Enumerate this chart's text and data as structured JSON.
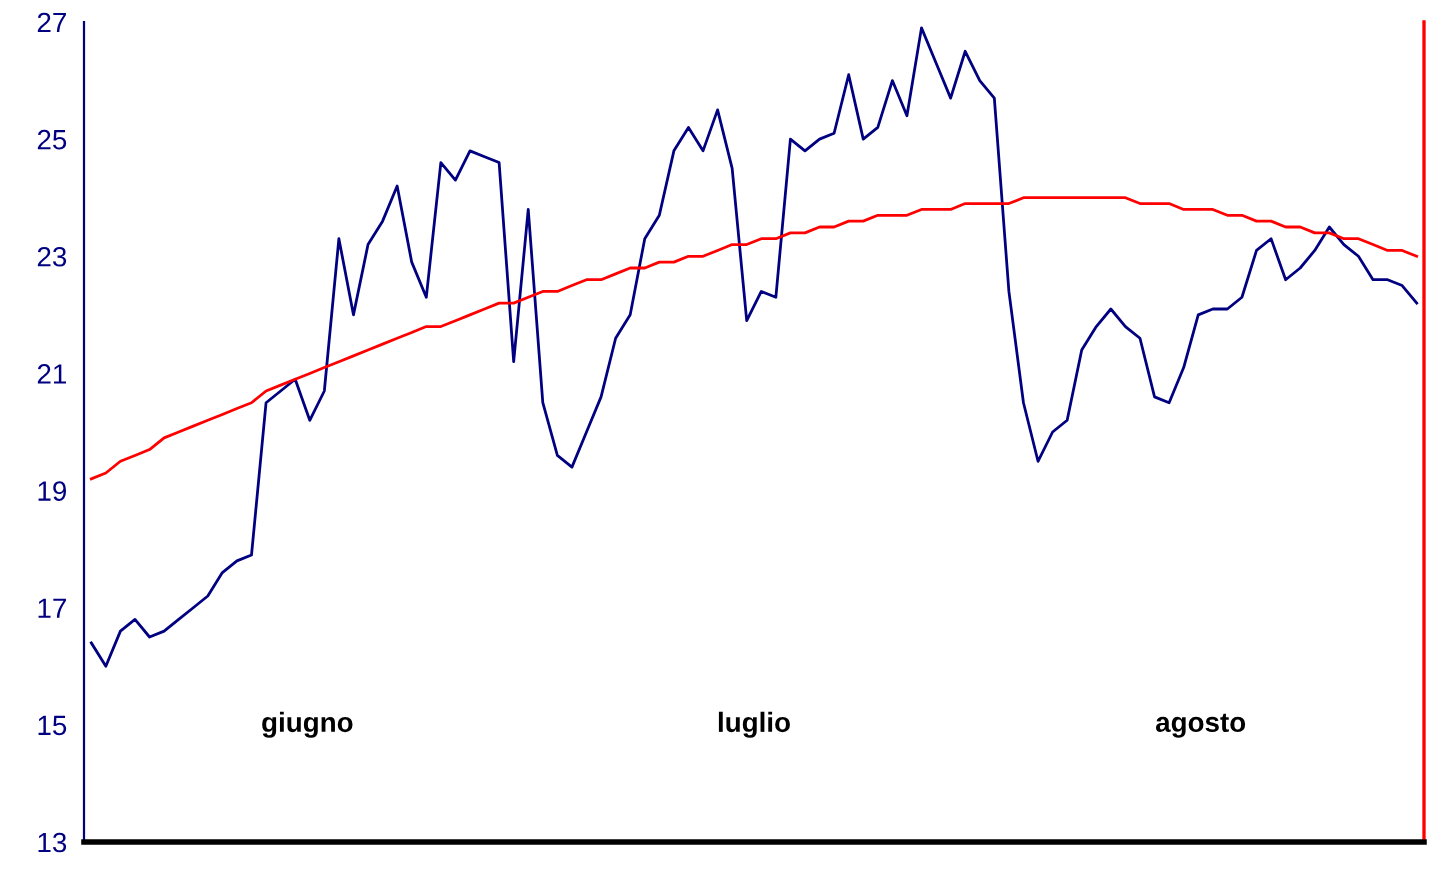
{
  "chart_data": {
    "type": "line",
    "categories": [
      null,
      null,
      null,
      null,
      null,
      null,
      null,
      null,
      null,
      null,
      null,
      null,
      null,
      null,
      null,
      null,
      null,
      null,
      null,
      null,
      null,
      null,
      null,
      null,
      null,
      null,
      null,
      null,
      null,
      null,
      null,
      null,
      null,
      null,
      null,
      null,
      null,
      null,
      null,
      null,
      null,
      null,
      null,
      null,
      null,
      null,
      null,
      null,
      null,
      null,
      null,
      null,
      null,
      null,
      null,
      null,
      null,
      null,
      null,
      null,
      null,
      null,
      null,
      null,
      null,
      null,
      null,
      null,
      null,
      null,
      null,
      null,
      null,
      null,
      null,
      null,
      null,
      null,
      null,
      null,
      null,
      null,
      null,
      null,
      null,
      null,
      null,
      null,
      null,
      null,
      null,
      null
    ],
    "ylim": [
      13,
      27
    ],
    "yticks": [
      13,
      15,
      17,
      19,
      21,
      23,
      25,
      27
    ],
    "tick_labels": "y",
    "grid": false,
    "marker": "none",
    "line_style": "solid",
    "annotations": [
      "giugno",
      "luglio",
      "agosto"
    ],
    "series": [
      {
        "color": "#000080",
        "values": [
          16.4,
          16.0,
          16.6,
          16.8,
          16.5,
          16.6,
          16.8,
          17.0,
          17.2,
          17.6,
          17.8,
          17.9,
          20.5,
          20.7,
          20.9,
          20.2,
          20.7,
          23.3,
          22.0,
          23.2,
          23.6,
          24.2,
          22.9,
          22.3,
          24.6,
          24.3,
          24.8,
          24.7,
          24.6,
          21.2,
          23.8,
          20.5,
          19.6,
          19.4,
          20.0,
          20.6,
          21.6,
          22.0,
          23.3,
          23.7,
          24.8,
          25.2,
          24.8,
          25.5,
          24.5,
          21.9,
          22.4,
          22.3,
          25.0,
          24.8,
          25.0,
          25.1,
          26.1,
          25.0,
          25.2,
          26.0,
          25.4,
          26.9,
          26.3,
          25.7,
          26.5,
          26.0,
          25.7,
          22.4,
          20.5,
          19.5,
          20.0,
          20.2,
          21.4,
          21.8,
          22.1,
          21.8,
          21.6,
          20.6,
          20.5,
          21.1,
          22.0,
          22.1,
          22.1,
          22.3,
          23.1,
          23.3,
          22.6,
          22.8,
          23.1,
          23.5,
          23.2,
          23.0,
          22.6,
          22.6,
          22.5,
          22.2
        ]
      },
      {
        "color": "#ff0000",
        "values": [
          19.2,
          19.3,
          19.5,
          19.6,
          19.7,
          19.9,
          20.0,
          20.1,
          20.2,
          20.3,
          20.4,
          20.5,
          20.7,
          20.8,
          20.9,
          21.0,
          21.1,
          21.2,
          21.3,
          21.4,
          21.5,
          21.6,
          21.7,
          21.8,
          21.8,
          21.9,
          22.0,
          22.1,
          22.2,
          22.2,
          22.3,
          22.4,
          22.4,
          22.5,
          22.6,
          22.6,
          22.7,
          22.8,
          22.8,
          22.9,
          22.9,
          23.0,
          23.0,
          23.1,
          23.2,
          23.2,
          23.3,
          23.3,
          23.4,
          23.4,
          23.5,
          23.5,
          23.6,
          23.6,
          23.7,
          23.7,
          23.7,
          23.8,
          23.8,
          23.8,
          23.9,
          23.9,
          23.9,
          23.9,
          24.0,
          24.0,
          24.0,
          24.0,
          24.0,
          24.0,
          24.0,
          24.0,
          23.9,
          23.9,
          23.9,
          23.8,
          23.8,
          23.8,
          23.7,
          23.7,
          23.6,
          23.6,
          23.5,
          23.5,
          23.4,
          23.4,
          23.3,
          23.3,
          23.2,
          23.1,
          23.1,
          23.0
        ]
      }
    ]
  }
}
